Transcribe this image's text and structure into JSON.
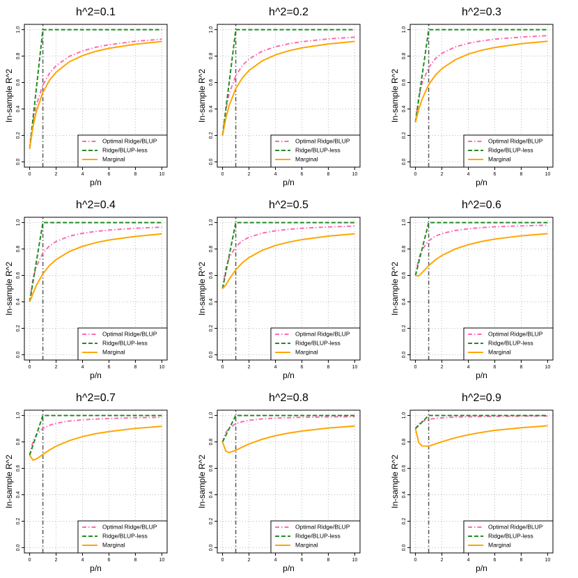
{
  "chart_data": [
    {
      "type": "line",
      "title": "h^2=0.1",
      "xlabel": "p/n",
      "ylabel": "In-sample R^2",
      "x": [
        0,
        0.25,
        0.5,
        1,
        1.5,
        2,
        3,
        4,
        5,
        6,
        8,
        10
      ],
      "series": [
        {
          "name": "Optimal Ridge/BLUP",
          "color": "#ff69b4",
          "linestyle": "dashdot",
          "values": [
            0.1,
            0.301,
            0.429,
            0.581,
            0.67,
            0.727,
            0.798,
            0.839,
            0.867,
            0.886,
            0.912,
            0.928
          ]
        },
        {
          "name": "Ridge/BLUP-less",
          "color": "#228b22",
          "linestyle": "dashed",
          "values": [
            0.1,
            0.325,
            0.55,
            1,
            1,
            1,
            1,
            1,
            1,
            1,
            1,
            1
          ]
        },
        {
          "name": "Marginal",
          "color": "#ffa500",
          "linestyle": "solid",
          "values": [
            0.1,
            0.265,
            0.379,
            0.526,
            0.617,
            0.678,
            0.757,
            0.804,
            0.836,
            0.859,
            0.89,
            0.91
          ]
        }
      ],
      "xlim": [
        -0.4,
        10.4
      ],
      "ylim": [
        -0.04,
        1.04
      ],
      "xticks": [
        0,
        2,
        4,
        6,
        8,
        10
      ],
      "yticks": [
        {
          "value": 0,
          "label": "0.0"
        },
        {
          "value": 0.2,
          "label": "0.2"
        },
        {
          "value": 0.4,
          "label": "0.4"
        },
        {
          "value": 0.6,
          "label": "0.6"
        },
        {
          "value": 0.8,
          "label": "0.8"
        },
        {
          "value": 1,
          "label": "1.0"
        }
      ],
      "grid": true,
      "legend": "bottomright",
      "vline": 1
    },
    {
      "type": "line",
      "title": "h^2=0.2",
      "xlabel": "p/n",
      "ylabel": "In-sample R^2",
      "x": [
        0,
        0.25,
        0.5,
        1,
        1.5,
        2,
        3,
        4,
        5,
        6,
        8,
        10
      ],
      "series": [
        {
          "name": "Optimal Ridge/BLUP",
          "color": "#ff69b4",
          "linestyle": "dashdot",
          "values": [
            0.2,
            0.396,
            0.515,
            0.652,
            0.729,
            0.778,
            0.837,
            0.871,
            0.893,
            0.909,
            0.93,
            0.943
          ]
        },
        {
          "name": "Ridge/BLUP-less",
          "color": "#228b22",
          "linestyle": "dashed",
          "values": [
            0.2,
            0.4,
            0.6,
            1,
            1,
            1,
            1,
            1,
            1,
            1,
            1,
            1
          ]
        },
        {
          "name": "Marginal",
          "color": "#ffa500",
          "linestyle": "solid",
          "values": [
            0.2,
            0.331,
            0.426,
            0.554,
            0.635,
            0.691,
            0.764,
            0.809,
            0.84,
            0.862,
            0.892,
            0.911
          ]
        }
      ],
      "xlim": [
        -0.4,
        10.4
      ],
      "ylim": [
        -0.04,
        1.04
      ],
      "xticks": [
        0,
        2,
        4,
        6,
        8,
        10
      ],
      "yticks": [
        {
          "value": 0,
          "label": "0.0"
        },
        {
          "value": 0.2,
          "label": "0.2"
        },
        {
          "value": 0.4,
          "label": "0.4"
        },
        {
          "value": 0.6,
          "label": "0.6"
        },
        {
          "value": 0.8,
          "label": "0.8"
        },
        {
          "value": 1,
          "label": "1.0"
        }
      ],
      "grid": true,
      "legend": "bottomright",
      "vline": 1
    },
    {
      "type": "line",
      "title": "h^2=0.3",
      "xlabel": "p/n",
      "ylabel": "In-sample R^2",
      "x": [
        0,
        0.25,
        0.5,
        1,
        1.5,
        2,
        3,
        4,
        5,
        6,
        8,
        10
      ],
      "series": [
        {
          "name": "Optimal Ridge/BLUP",
          "color": "#ff69b4",
          "linestyle": "dashdot",
          "values": [
            0.3,
            0.486,
            0.594,
            0.714,
            0.78,
            0.821,
            0.869,
            0.897,
            0.915,
            0.928,
            0.944,
            0.955
          ]
        },
        {
          "name": "Ridge/BLUP-less",
          "color": "#228b22",
          "linestyle": "dashed",
          "values": [
            0.3,
            0.475,
            0.65,
            1,
            1,
            1,
            1,
            1,
            1,
            1,
            1,
            1
          ]
        },
        {
          "name": "Marginal",
          "color": "#ffa500",
          "linestyle": "solid",
          "values": [
            0.3,
            0.397,
            0.474,
            0.583,
            0.655,
            0.705,
            0.772,
            0.815,
            0.844,
            0.865,
            0.894,
            0.912
          ]
        }
      ],
      "xlim": [
        -0.4,
        10.4
      ],
      "ylim": [
        -0.04,
        1.04
      ],
      "xticks": [
        0,
        2,
        4,
        6,
        8,
        10
      ],
      "yticks": [
        {
          "value": 0,
          "label": "0.0"
        },
        {
          "value": 0.2,
          "label": "0.2"
        },
        {
          "value": 0.4,
          "label": "0.4"
        },
        {
          "value": 0.6,
          "label": "0.6"
        },
        {
          "value": 0.8,
          "label": "0.8"
        },
        {
          "value": 1,
          "label": "1.0"
        }
      ],
      "grid": true,
      "legend": "bottomright",
      "vline": 1
    },
    {
      "type": "line",
      "title": "h^2=0.4",
      "xlabel": "p/n",
      "ylabel": "In-sample R^2",
      "x": [
        0,
        0.25,
        0.5,
        1,
        1.5,
        2,
        3,
        4,
        5,
        6,
        8,
        10
      ],
      "series": [
        {
          "name": "Optimal Ridge/BLUP",
          "color": "#ff69b4",
          "linestyle": "dashdot",
          "values": [
            0.4,
            0.571,
            0.667,
            0.769,
            0.824,
            0.857,
            0.897,
            0.919,
            0.933,
            0.943,
            0.957,
            0.965
          ]
        },
        {
          "name": "Ridge/BLUP-less",
          "color": "#228b22",
          "linestyle": "dashed",
          "values": [
            0.4,
            0.55,
            0.7,
            1,
            1,
            1,
            1,
            1,
            1,
            1,
            1,
            1
          ]
        },
        {
          "name": "Marginal",
          "color": "#ffa500",
          "linestyle": "solid",
          "values": [
            0.4,
            0.463,
            0.523,
            0.613,
            0.675,
            0.72,
            0.781,
            0.82,
            0.848,
            0.868,
            0.895,
            0.914
          ]
        }
      ],
      "xlim": [
        -0.4,
        10.4
      ],
      "ylim": [
        -0.04,
        1.04
      ],
      "xticks": [
        0,
        2,
        4,
        6,
        8,
        10
      ],
      "yticks": [
        {
          "value": 0,
          "label": "0.0"
        },
        {
          "value": 0.2,
          "label": "0.2"
        },
        {
          "value": 0.4,
          "label": "0.4"
        },
        {
          "value": 0.6,
          "label": "0.6"
        },
        {
          "value": 0.8,
          "label": "0.8"
        },
        {
          "value": 1,
          "label": "1.0"
        }
      ],
      "grid": true,
      "legend": "bottomright",
      "vline": 1
    },
    {
      "type": "line",
      "title": "h^2=0.5",
      "xlabel": "p/n",
      "ylabel": "In-sample R^2",
      "x": [
        0,
        0.25,
        0.5,
        1,
        1.5,
        2,
        3,
        4,
        5,
        6,
        8,
        10
      ],
      "series": [
        {
          "name": "Optimal Ridge/BLUP",
          "color": "#ff69b4",
          "linestyle": "dashdot",
          "values": [
            0.5,
            0.652,
            0.733,
            0.818,
            0.862,
            0.889,
            0.92,
            0.938,
            0.949,
            0.957,
            0.967,
            0.973
          ]
        },
        {
          "name": "Ridge/BLUP-less",
          "color": "#228b22",
          "linestyle": "dashed",
          "values": [
            0.5,
            0.625,
            0.75,
            1,
            1,
            1,
            1,
            1,
            1,
            1,
            1,
            1
          ]
        },
        {
          "name": "Marginal",
          "color": "#ffa500",
          "linestyle": "solid",
          "values": [
            0.5,
            0.529,
            0.571,
            0.643,
            0.696,
            0.735,
            0.79,
            0.827,
            0.852,
            0.871,
            0.898,
            0.915
          ]
        }
      ],
      "xlim": [
        -0.4,
        10.4
      ],
      "ylim": [
        -0.04,
        1.04
      ],
      "xticks": [
        0,
        2,
        4,
        6,
        8,
        10
      ],
      "yticks": [
        {
          "value": 0,
          "label": "0.0"
        },
        {
          "value": 0.2,
          "label": "0.2"
        },
        {
          "value": 0.4,
          "label": "0.4"
        },
        {
          "value": 0.6,
          "label": "0.6"
        },
        {
          "value": 0.8,
          "label": "0.8"
        },
        {
          "value": 1,
          "label": "1.0"
        }
      ],
      "grid": true,
      "legend": "bottomright",
      "vline": 1
    },
    {
      "type": "line",
      "title": "h^2=0.6",
      "xlabel": "p/n",
      "ylabel": "In-sample R^2",
      "x": [
        0,
        0.25,
        0.5,
        1,
        1.5,
        2,
        3,
        4,
        5,
        6,
        8,
        10
      ],
      "series": [
        {
          "name": "Optimal Ridge/BLUP",
          "color": "#ff69b4",
          "linestyle": "dashdot",
          "values": [
            0.6,
            0.729,
            0.795,
            0.862,
            0.896,
            0.917,
            0.94,
            0.953,
            0.962,
            0.968,
            0.975,
            0.98
          ]
        },
        {
          "name": "Ridge/BLUP-less",
          "color": "#228b22",
          "linestyle": "dashed",
          "values": [
            0.6,
            0.7,
            0.8,
            1,
            1,
            1,
            1,
            1,
            1,
            1,
            1,
            1
          ]
        },
        {
          "name": "Marginal",
          "color": "#ffa500",
          "linestyle": "solid",
          "values": [
            0.6,
            0.596,
            0.621,
            0.674,
            0.717,
            0.751,
            0.8,
            0.833,
            0.857,
            0.875,
            0.9,
            0.916
          ]
        }
      ],
      "xlim": [
        -0.4,
        10.4
      ],
      "ylim": [
        -0.04,
        1.04
      ],
      "xticks": [
        0,
        2,
        4,
        6,
        8,
        10
      ],
      "yticks": [
        {
          "value": 0,
          "label": "0.0"
        },
        {
          "value": 0.2,
          "label": "0.2"
        },
        {
          "value": 0.4,
          "label": "0.4"
        },
        {
          "value": 0.6,
          "label": "0.6"
        },
        {
          "value": 0.8,
          "label": "0.8"
        },
        {
          "value": 1,
          "label": "1.0"
        }
      ],
      "grid": true,
      "legend": "bottomright",
      "vline": 1
    },
    {
      "type": "line",
      "title": "h^2=0.7",
      "xlabel": "p/n",
      "ylabel": "In-sample R^2",
      "x": [
        0,
        0.25,
        0.5,
        1,
        1.5,
        2,
        3,
        4,
        5,
        6,
        8,
        10
      ],
      "series": [
        {
          "name": "Optimal Ridge/BLUP",
          "color": "#ff69b4",
          "linestyle": "dashdot",
          "values": [
            0.7,
            0.802,
            0.852,
            0.902,
            0.926,
            0.941,
            0.958,
            0.967,
            0.973,
            0.977,
            0.983,
            0.986
          ]
        },
        {
          "name": "Ridge/BLUP-less",
          "color": "#228b22",
          "linestyle": "dashed",
          "values": [
            0.7,
            0.775,
            0.85,
            1,
            1,
            1,
            1,
            1,
            1,
            1,
            1,
            1
          ]
        },
        {
          "name": "Marginal",
          "color": "#ffa500",
          "linestyle": "solid",
          "values": [
            0.7,
            0.662,
            0.67,
            0.705,
            0.739,
            0.767,
            0.81,
            0.84,
            0.862,
            0.878,
            0.902,
            0.918
          ]
        }
      ],
      "xlim": [
        -0.4,
        10.4
      ],
      "ylim": [
        -0.04,
        1.04
      ],
      "xticks": [
        0,
        2,
        4,
        6,
        8,
        10
      ],
      "yticks": [
        {
          "value": 0,
          "label": "0.0"
        },
        {
          "value": 0.2,
          "label": "0.2"
        },
        {
          "value": 0.4,
          "label": "0.4"
        },
        {
          "value": 0.6,
          "label": "0.6"
        },
        {
          "value": 0.8,
          "label": "0.8"
        },
        {
          "value": 1,
          "label": "1.0"
        }
      ],
      "grid": true,
      "legend": "bottomright",
      "vline": 1
    },
    {
      "type": "line",
      "title": "h^2=0.8",
      "xlabel": "p/n",
      "ylabel": "In-sample R^2",
      "x": [
        0,
        0.25,
        0.5,
        1,
        1.5,
        2,
        3,
        4,
        5,
        6,
        8,
        10
      ],
      "series": [
        {
          "name": "Optimal Ridge/BLUP",
          "color": "#ff69b4",
          "linestyle": "dashdot",
          "values": [
            0.8,
            0.871,
            0.905,
            0.938,
            0.953,
            0.963,
            0.974,
            0.98,
            0.983,
            0.986,
            0.989,
            0.991
          ]
        },
        {
          "name": "Ridge/BLUP-less",
          "color": "#228b22",
          "linestyle": "dashed",
          "values": [
            0.8,
            0.85,
            0.9,
            1,
            1,
            1,
            1,
            1,
            1,
            1,
            1,
            1
          ]
        },
        {
          "name": "Marginal",
          "color": "#ffa500",
          "linestyle": "solid",
          "values": [
            0.8,
            0.729,
            0.719,
            0.736,
            0.761,
            0.784,
            0.82,
            0.847,
            0.867,
            0.882,
            0.905,
            0.92
          ]
        }
      ],
      "xlim": [
        -0.4,
        10.4
      ],
      "ylim": [
        -0.04,
        1.04
      ],
      "xticks": [
        0,
        2,
        4,
        6,
        8,
        10
      ],
      "yticks": [
        {
          "value": 0,
          "label": "0.0"
        },
        {
          "value": 0.2,
          "label": "0.2"
        },
        {
          "value": 0.4,
          "label": "0.4"
        },
        {
          "value": 0.6,
          "label": "0.6"
        },
        {
          "value": 0.8,
          "label": "0.8"
        },
        {
          "value": 1,
          "label": "1.0"
        }
      ],
      "grid": true,
      "legend": "bottomright",
      "vline": 1
    },
    {
      "type": "line",
      "title": "h^2=0.9",
      "xlabel": "p/n",
      "ylabel": "In-sample R^2",
      "x": [
        0,
        0.25,
        0.5,
        1,
        1.5,
        2,
        3,
        4,
        5,
        6,
        8,
        10
      ],
      "series": [
        {
          "name": "Optimal Ridge/BLUP",
          "color": "#ff69b4",
          "linestyle": "dashdot",
          "values": [
            0.9,
            0.937,
            0.954,
            0.97,
            0.978,
            0.982,
            0.988,
            0.99,
            0.992,
            0.993,
            0.995,
            0.996
          ]
        },
        {
          "name": "Ridge/BLUP-less",
          "color": "#228b22",
          "linestyle": "dashed",
          "values": [
            0.9,
            0.925,
            0.95,
            1,
            1,
            1,
            1,
            1,
            1,
            1,
            1,
            1
          ]
        },
        {
          "name": "Marginal",
          "color": "#ffa500",
          "linestyle": "solid",
          "values": [
            0.9,
            0.795,
            0.769,
            0.768,
            0.784,
            0.801,
            0.831,
            0.854,
            0.872,
            0.887,
            0.907,
            0.922
          ]
        }
      ],
      "xlim": [
        -0.4,
        10.4
      ],
      "ylim": [
        -0.04,
        1.04
      ],
      "xticks": [
        0,
        2,
        4,
        6,
        8,
        10
      ],
      "yticks": [
        {
          "value": 0,
          "label": "0.0"
        },
        {
          "value": 0.2,
          "label": "0.2"
        },
        {
          "value": 0.4,
          "label": "0.4"
        },
        {
          "value": 0.6,
          "label": "0.6"
        },
        {
          "value": 0.8,
          "label": "0.8"
        },
        {
          "value": 1,
          "label": "1.0"
        }
      ],
      "grid": true,
      "legend": "bottomright",
      "vline": 1
    }
  ]
}
